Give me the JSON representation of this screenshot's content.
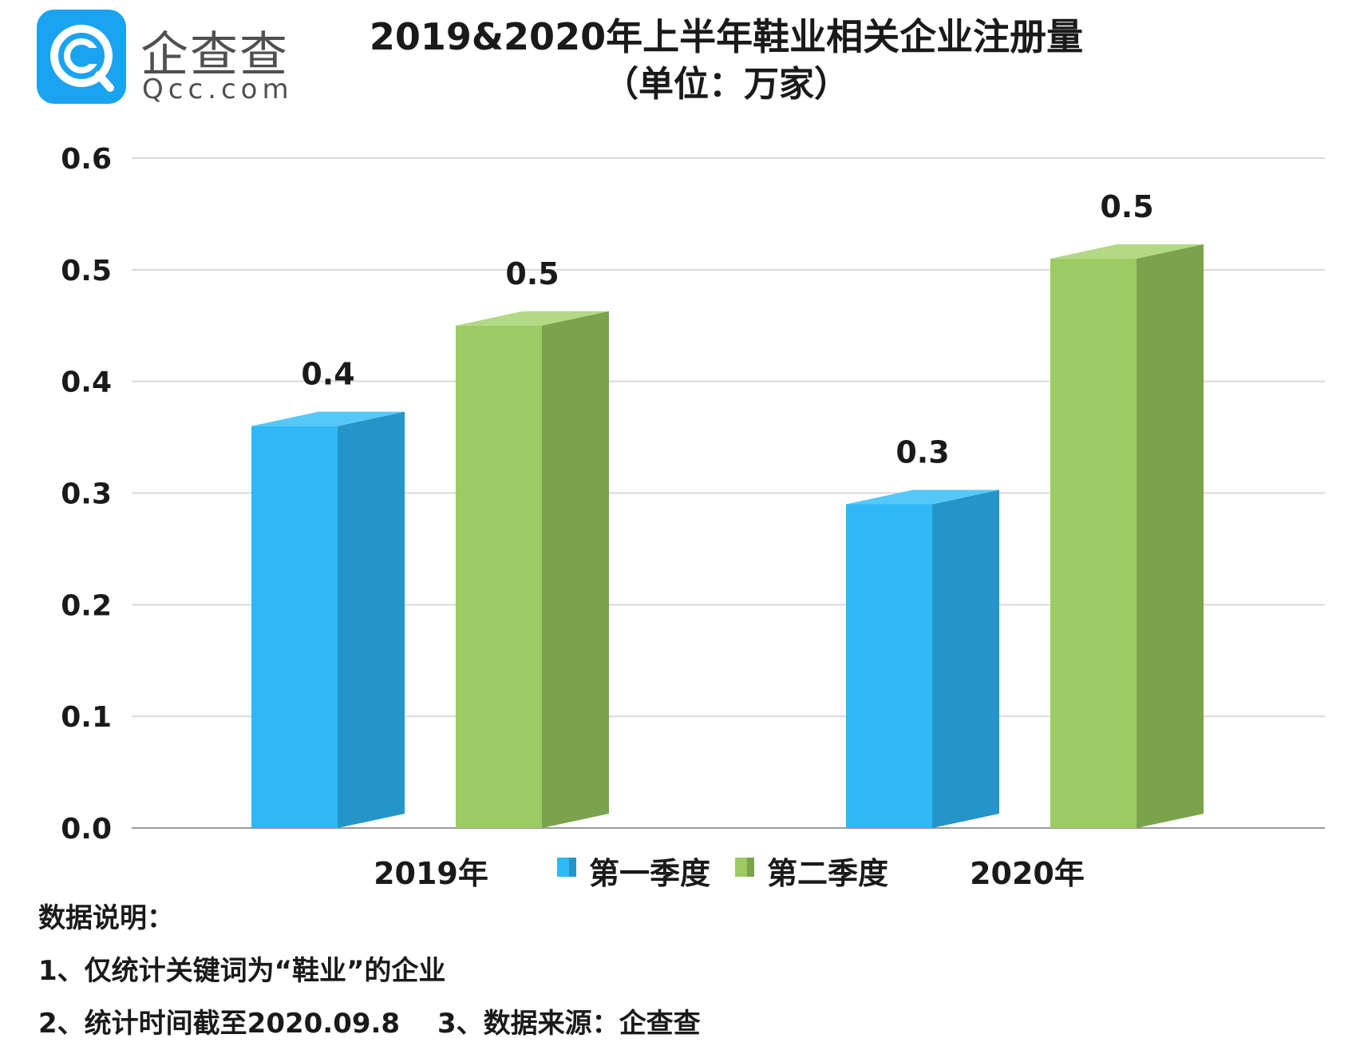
{
  "logo": {
    "cn": "企查查",
    "en": "Qcc.com",
    "badge_color": "#1aa3f0"
  },
  "chart_data": {
    "type": "bar",
    "title": "2019&2020年上半年鞋业相关企业注册量",
    "subtitle": "（单位：万家）",
    "categories": [
      "2019年",
      "2020年"
    ],
    "series": [
      {
        "name": "第一季度",
        "values": [
          0.36,
          0.29
        ],
        "labels": [
          "0.4",
          "0.3"
        ],
        "color": "#2fb8f5",
        "side_color": "#2595c9",
        "top_color": "#55c8f8"
      },
      {
        "name": "第二季度",
        "values": [
          0.45,
          0.51
        ],
        "labels": [
          "0.5",
          "0.5"
        ],
        "color": "#9bcb62",
        "side_color": "#7ba24c",
        "top_color": "#b3d886"
      }
    ],
    "yticks": [
      "0.0",
      "0.1",
      "0.2",
      "0.3",
      "0.4",
      "0.5",
      "0.6"
    ],
    "ylim": [
      0,
      0.6
    ],
    "grid": true,
    "legend": "bottom-center"
  },
  "notes": {
    "heading": "数据说明：",
    "line1": "1、仅统计关键词为“鞋业”的企业",
    "line2": "2、统计时间截至2020.09.8",
    "line3": "3、数据来源：企查查"
  }
}
